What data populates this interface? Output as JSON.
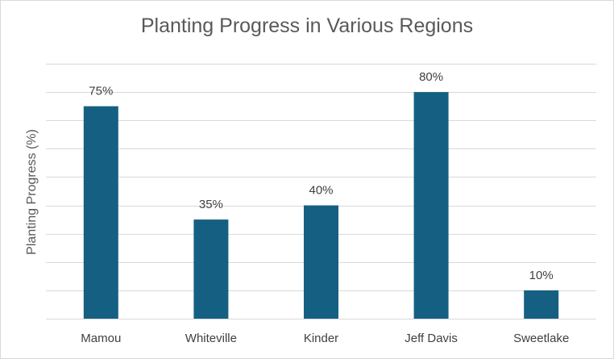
{
  "chart_data": {
    "type": "bar",
    "title": "Planting Progress in Various Regions",
    "xlabel": "",
    "ylabel": "Planting Progress (%)",
    "categories": [
      "Mamou",
      "Whiteville",
      "Kinder",
      "Jeff Davis",
      "Sweetlake"
    ],
    "values": [
      75,
      35,
      40,
      80,
      10
    ],
    "data_labels": [
      "75%",
      "35%",
      "40%",
      "80%",
      "10%"
    ],
    "ylim": [
      0,
      90
    ],
    "grid": true,
    "bar_color": "#156082",
    "gridline_color": "#d9d9d9"
  }
}
